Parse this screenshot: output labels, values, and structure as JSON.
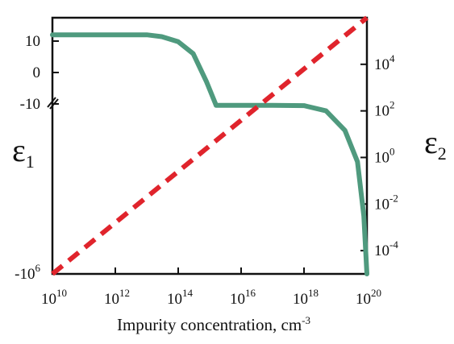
{
  "chart_data": {
    "type": "line",
    "title": "",
    "xlabel": "Impurity concentration, cm",
    "xlabel_exp": "-3",
    "ylabel_left": {
      "symbol": "ε",
      "sub": "1"
    },
    "ylabel_right": {
      "symbol": "ε",
      "sub": "2"
    },
    "x_scale": "log",
    "xlim": [
      10000000000.0,
      1e+20
    ],
    "x_ticks": [
      {
        "base": "10",
        "exp": "10",
        "value": 10000000000.0
      },
      {
        "base": "10",
        "exp": "12",
        "value": 1000000000000.0
      },
      {
        "base": "10",
        "exp": "14",
        "value": 100000000000000.0
      },
      {
        "base": "10",
        "exp": "16",
        "value": 1e+16
      },
      {
        "base": "10",
        "exp": "18",
        "value": 1e+18
      },
      {
        "base": "10",
        "exp": "20",
        "value": 1e+20
      }
    ],
    "left_axis": {
      "scale": "broken-linear",
      "ticks": [
        {
          "base": "10",
          "exp": ""
        },
        {
          "base": "0",
          "exp": ""
        },
        {
          "base": "-10",
          "exp": ""
        },
        {
          "base": "-10",
          "exp": "6"
        }
      ]
    },
    "right_axis": {
      "scale": "log",
      "ylim": [
        1e-05,
        1000000.0
      ],
      "ticks": [
        {
          "base": "10",
          "exp": "4",
          "value": 10000.0
        },
        {
          "base": "10",
          "exp": "2",
          "value": 100.0
        },
        {
          "base": "10",
          "exp": "0",
          "value": 1
        },
        {
          "base": "10",
          "exp": "-2",
          "value": 0.01
        },
        {
          "base": "10",
          "exp": "-4",
          "value": 0.0001
        }
      ]
    },
    "series": [
      {
        "axis": "left",
        "color": "#4f9a7e",
        "style": "solid",
        "points": [
          {
            "x": 10000000000.0,
            "y": 12
          },
          {
            "x": 100000000000.0,
            "y": 12
          },
          {
            "x": 1000000000000.0,
            "y": 12
          },
          {
            "x": 10000000000000.0,
            "y": 12
          },
          {
            "x": 30000000000000.0,
            "y": 11.4
          },
          {
            "x": 100000000000000.0,
            "y": 9.8
          },
          {
            "x": 300000000000000.0,
            "y": 6
          },
          {
            "x": 800000000000000.0,
            "y": -3
          },
          {
            "x": 1600000000000000.0,
            "y": -11
          },
          {
            "x": 1e+16,
            "y": -11
          },
          {
            "x": 1e+17,
            "y": -11
          },
          {
            "x": 1e+18,
            "y": -11.2
          },
          {
            "x": 5e+18,
            "y": -16
          },
          {
            "x": 2e+19,
            "y": -60
          },
          {
            "x": 5e+19,
            "y": -500
          },
          {
            "x": 8e+19,
            "y": -20000
          },
          {
            "x": 1e+20,
            "y": -1000000
          }
        ]
      },
      {
        "axis": "right",
        "color": "#e0242c",
        "style": "dashed",
        "points": [
          {
            "x": 10000000000.0,
            "y": 1e-05
          },
          {
            "x": 1e+20,
            "y": 1000000.0
          }
        ]
      }
    ],
    "grid": false,
    "legend": "none"
  }
}
